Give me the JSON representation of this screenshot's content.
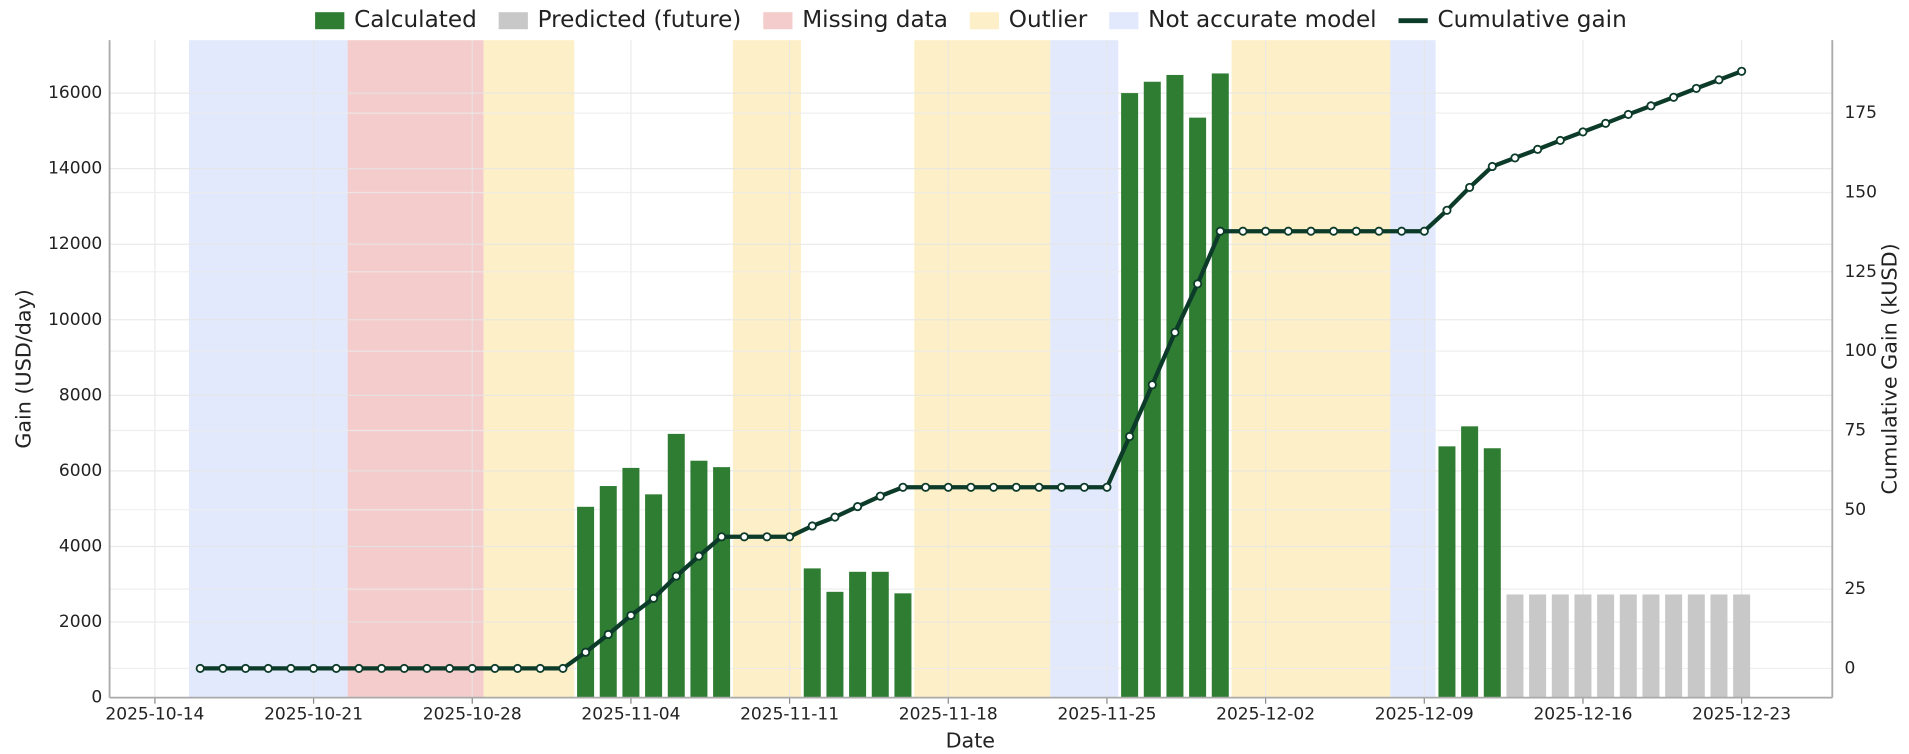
{
  "chart_data": {
    "type": "bar",
    "xlabel": "Date",
    "ylabel": "Gain (USD/day)",
    "y2label": "Cumulative Gain (kUSD)",
    "legend": "upper center",
    "grid": true,
    "x": [
      "2025-10-16",
      "2025-10-17",
      "2025-10-18",
      "2025-10-19",
      "2025-10-20",
      "2025-10-21",
      "2025-10-22",
      "2025-10-23",
      "2025-10-24",
      "2025-10-25",
      "2025-10-26",
      "2025-10-27",
      "2025-10-28",
      "2025-10-29",
      "2025-10-30",
      "2025-10-31",
      "2025-11-01",
      "2025-11-02",
      "2025-11-03",
      "2025-11-04",
      "2025-11-05",
      "2025-11-06",
      "2025-11-07",
      "2025-11-08",
      "2025-11-09",
      "2025-11-10",
      "2025-11-11",
      "2025-11-12",
      "2025-11-13",
      "2025-11-14",
      "2025-11-15",
      "2025-11-16",
      "2025-11-17",
      "2025-11-18",
      "2025-11-19",
      "2025-11-20",
      "2025-11-21",
      "2025-11-22",
      "2025-11-23",
      "2025-11-24",
      "2025-11-25",
      "2025-11-26",
      "2025-11-27",
      "2025-11-28",
      "2025-11-29",
      "2025-11-30",
      "2025-12-01",
      "2025-12-02",
      "2025-12-03",
      "2025-12-04",
      "2025-12-05",
      "2025-12-06",
      "2025-12-07",
      "2025-12-08",
      "2025-12-09",
      "2025-12-10",
      "2025-12-11",
      "2025-12-12",
      "2025-12-13",
      "2025-12-14",
      "2025-12-15",
      "2025-12-16",
      "2025-12-17",
      "2025-12-18",
      "2025-12-19",
      "2025-12-20",
      "2025-12-21",
      "2025-12-22",
      "2025-12-23"
    ],
    "series": [
      {
        "name": "Calculated",
        "type": "bar",
        "color": "#2e7d32",
        "values": [
          null,
          null,
          null,
          null,
          null,
          null,
          null,
          null,
          null,
          null,
          null,
          null,
          null,
          null,
          null,
          null,
          null,
          5050,
          5600,
          6080,
          5380,
          6980,
          6270,
          6100,
          null,
          null,
          null,
          3420,
          2800,
          3330,
          3330,
          2760,
          null,
          null,
          null,
          null,
          null,
          null,
          null,
          null,
          null,
          16000,
          16300,
          16480,
          15350,
          16520,
          null,
          null,
          null,
          null,
          null,
          null,
          null,
          null,
          null,
          6650,
          7180,
          6600,
          null,
          null,
          null,
          null,
          null,
          null,
          null,
          null,
          null,
          null,
          null
        ]
      },
      {
        "name": "Predicted (future)",
        "type": "bar",
        "color": "#c8c8c8",
        "values": [
          null,
          null,
          null,
          null,
          null,
          null,
          null,
          null,
          null,
          null,
          null,
          null,
          null,
          null,
          null,
          null,
          null,
          null,
          null,
          null,
          null,
          null,
          null,
          null,
          null,
          null,
          null,
          null,
          null,
          null,
          null,
          null,
          null,
          null,
          null,
          null,
          null,
          null,
          null,
          null,
          null,
          null,
          null,
          null,
          null,
          null,
          null,
          null,
          null,
          null,
          null,
          null,
          null,
          null,
          null,
          null,
          null,
          null,
          2730,
          2730,
          2730,
          2730,
          2730,
          2730,
          2730,
          2730,
          2730,
          2730,
          2730
        ]
      },
      {
        "name": "Cumulative gain",
        "type": "line",
        "axis": "y2",
        "color": "#0d3b2a",
        "values": [
          0,
          0,
          0,
          0,
          0,
          0,
          0,
          0,
          0,
          0,
          0,
          0,
          0,
          0,
          0,
          0,
          0,
          5.1,
          10.7,
          16.7,
          22.1,
          29.1,
          35.4,
          41.5,
          41.5,
          41.5,
          41.5,
          44.9,
          47.7,
          51.0,
          54.3,
          57.1,
          57.1,
          57.1,
          57.1,
          57.1,
          57.1,
          57.1,
          57.1,
          57.1,
          57.1,
          73.1,
          89.4,
          105.9,
          121.2,
          137.8,
          137.8,
          137.8,
          137.8,
          137.8,
          137.8,
          137.8,
          137.8,
          137.8,
          137.8,
          144.4,
          151.6,
          158.2,
          160.9,
          163.6,
          166.4,
          169.1,
          171.8,
          174.6,
          177.3,
          180.0,
          182.8,
          185.5,
          188.2
        ]
      }
    ],
    "bands": [
      {
        "name": "Missing data",
        "color": "#f4cccc",
        "ranges": [
          [
            "2025-10-23",
            "2025-10-28"
          ]
        ]
      },
      {
        "name": "Outlier",
        "color": "#fdefc7",
        "ranges": [
          [
            "2025-10-29",
            "2025-11-01"
          ],
          [
            "2025-11-09",
            "2025-11-11"
          ],
          [
            "2025-11-17",
            "2025-11-22"
          ],
          [
            "2025-12-01",
            "2025-12-07"
          ]
        ]
      },
      {
        "name": "Not accurate model",
        "color": "#e2e9fc",
        "ranges": [
          [
            "2025-10-16",
            "2025-10-22"
          ],
          [
            "2025-11-23",
            "2025-11-25"
          ],
          [
            "2025-12-08",
            "2025-12-09"
          ]
        ]
      }
    ],
    "xlim": [
      "2025-10-12",
      "2025-12-27"
    ],
    "xticks": [
      "2025-10-14",
      "2025-10-21",
      "2025-10-28",
      "2025-11-04",
      "2025-11-11",
      "2025-11-18",
      "2025-11-25",
      "2025-12-02",
      "2025-12-09",
      "2025-12-16",
      "2025-12-23"
    ],
    "ylim": [
      0,
      17400
    ],
    "yticks": [
      0,
      2000,
      4000,
      6000,
      8000,
      10000,
      12000,
      14000,
      16000
    ],
    "y2lim": [
      -9.2,
      198
    ],
    "y2ticks": [
      0,
      25,
      50,
      75,
      100,
      125,
      150,
      175
    ]
  }
}
